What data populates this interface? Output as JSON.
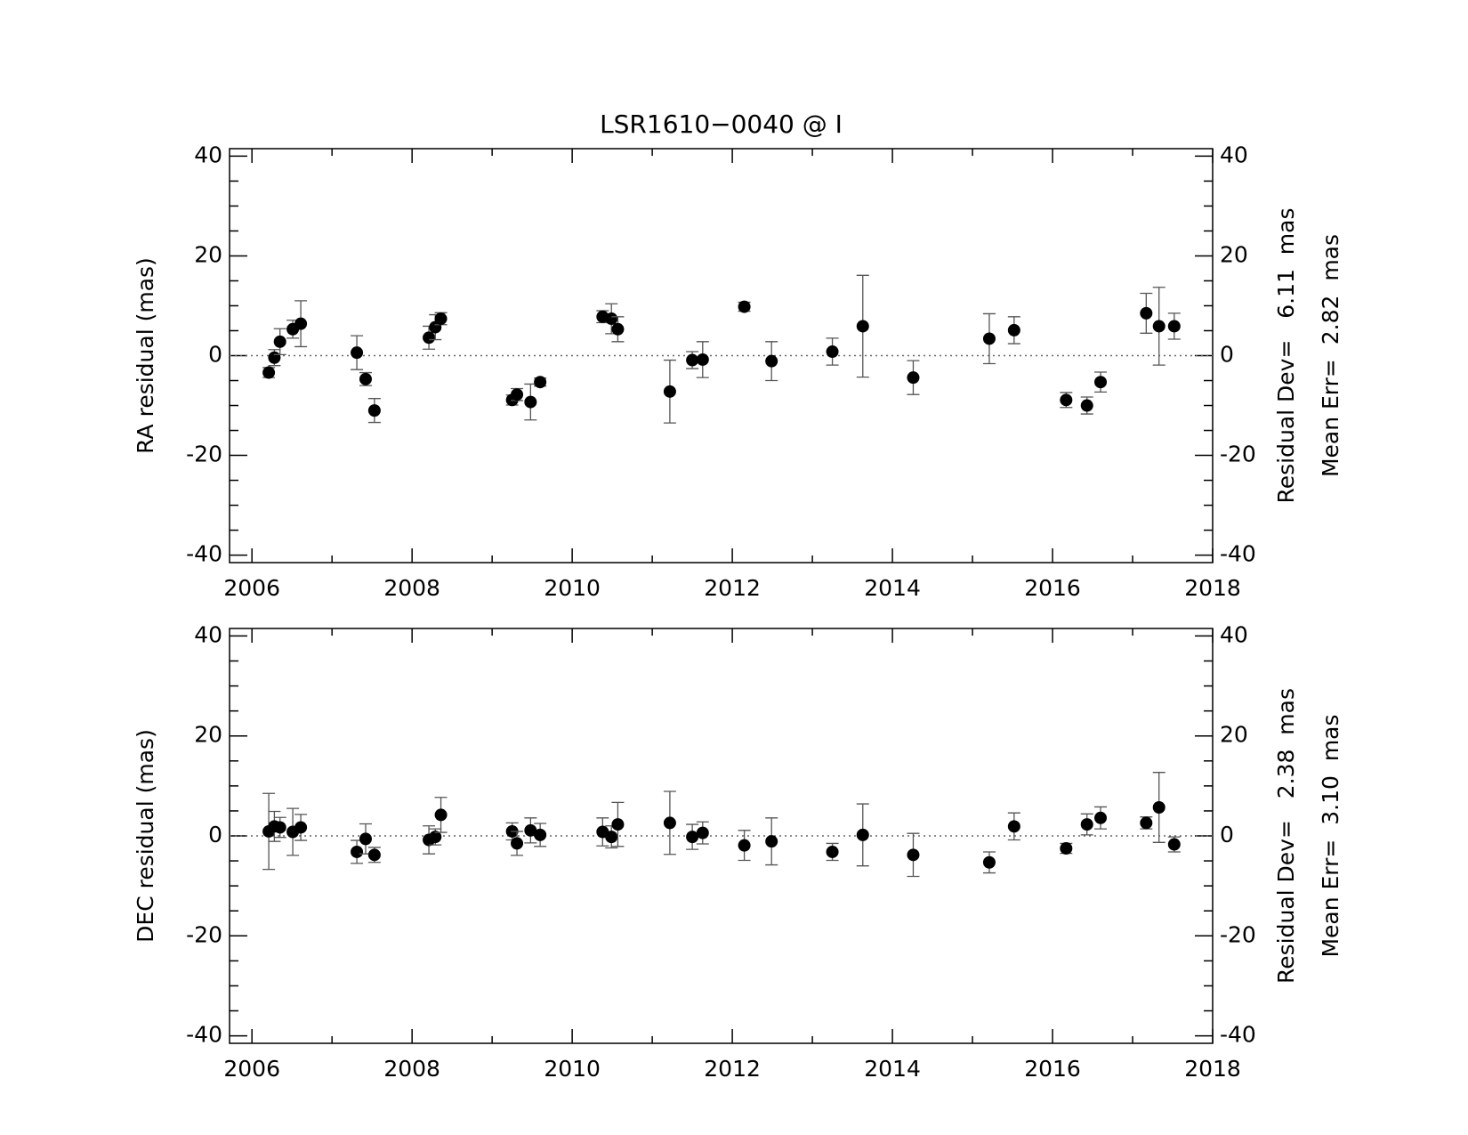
{
  "chart_data": [
    {
      "type": "scatter",
      "title": "LSR1610−0040 @ I",
      "ylabel": "RA residual (mas)",
      "annotations": [
        "Residual Dev=   6.11  mas",
        "Mean Err=  2.82  mas"
      ],
      "color": "#000000",
      "x": [
        2006.21,
        2006.28,
        2006.35,
        2006.51,
        2006.61,
        2007.31,
        2007.42,
        2007.53,
        2008.21,
        2008.29,
        2008.36,
        2009.25,
        2009.31,
        2009.48,
        2009.6,
        2010.38,
        2010.49,
        2010.57,
        2011.22,
        2011.5,
        2011.63,
        2012.15,
        2012.49,
        2013.25,
        2013.63,
        2014.26,
        2015.21,
        2015.52,
        2016.17,
        2016.43,
        2016.6,
        2017.17,
        2017.33,
        2017.52
      ],
      "values": [
        -3.4,
        -0.4,
        2.8,
        5.3,
        6.4,
        0.6,
        -4.7,
        -11,
        3.6,
        5.7,
        7.4,
        -8.9,
        -7.8,
        -9.3,
        -5.3,
        7.8,
        7.4,
        5.3,
        -7.2,
        -0.9,
        -0.8,
        9.8,
        -1.1,
        0.8,
        5.9,
        -4.4,
        3.4,
        5.1,
        -8.9,
        -10.0,
        -5.3,
        8.5,
        5.9,
        5.9
      ],
      "errors": [
        1.0,
        1.6,
        2.6,
        1.8,
        4.6,
        3.4,
        1.3,
        2.4,
        2.3,
        2.5,
        1.2,
        1.0,
        1.2,
        3.6,
        0.8,
        1.2,
        3.0,
        2.5,
        6.3,
        1.7,
        3.6,
        0.9,
        3.9,
        2.7,
        10.2,
        3.4,
        5.0,
        2.7,
        1.5,
        1.7,
        2.0,
        4.0,
        7.8,
        2.6
      ],
      "hline": 0,
      "xlim": [
        2005.72,
        2018.0
      ],
      "xticks": [
        2006,
        2008,
        2010,
        2012,
        2014,
        2016,
        2018
      ],
      "xminorticks": [
        2007,
        2009,
        2011,
        2013,
        2015,
        2017
      ],
      "ylim": [
        -41.5,
        41.5
      ],
      "yticks": [
        -40,
        -20,
        0,
        20,
        40
      ],
      "yminorticks": [
        -35,
        -30,
        -25,
        -15,
        -10,
        -5,
        5,
        10,
        15,
        25,
        30,
        35
      ]
    },
    {
      "type": "scatter",
      "ylabel": "DEC residual (mas)",
      "annotations": [
        "Residual Dev=   2.38  mas",
        "Mean Err=  3.10  mas"
      ],
      "color": "#000000",
      "x": [
        2006.21,
        2006.28,
        2006.35,
        2006.51,
        2006.61,
        2007.31,
        2007.42,
        2007.53,
        2008.21,
        2008.29,
        2008.36,
        2009.25,
        2009.31,
        2009.48,
        2009.6,
        2010.38,
        2010.49,
        2010.57,
        2011.22,
        2011.5,
        2011.63,
        2012.15,
        2012.49,
        2013.25,
        2013.63,
        2014.26,
        2015.21,
        2015.52,
        2016.17,
        2016.43,
        2016.6,
        2017.17,
        2017.33,
        2017.52
      ],
      "values": [
        0.9,
        1.9,
        1.7,
        0.8,
        1.7,
        -3.2,
        -0.6,
        -3.8,
        -0.8,
        -0.2,
        4.2,
        0.9,
        -1.5,
        1.1,
        0.2,
        0.8,
        -0.2,
        2.3,
        2.6,
        -0.2,
        0.6,
        -1.9,
        -1.1,
        -3.2,
        0.2,
        -3.8,
        -5.3,
        1.9,
        -2.5,
        2.3,
        3.6,
        2.6,
        5.7,
        -1.7
      ],
      "errors": [
        7.6,
        3.0,
        2.0,
        4.7,
        2.6,
        2.3,
        3.0,
        1.5,
        2.8,
        1.6,
        3.5,
        1.7,
        2.4,
        2.5,
        2.3,
        2.8,
        2.2,
        4.4,
        6.3,
        2.5,
        2.2,
        3.0,
        4.7,
        1.7,
        6.2,
        4.3,
        2.1,
        2.7,
        1.0,
        2.1,
        2.2,
        1.2,
        7.0,
        1.5
      ],
      "hline": 0,
      "xlim": [
        2005.72,
        2018.0
      ],
      "xticks": [
        2006,
        2008,
        2010,
        2012,
        2014,
        2016,
        2018
      ],
      "xminorticks": [
        2007,
        2009,
        2011,
        2013,
        2015,
        2017
      ],
      "ylim": [
        -41.5,
        41.5
      ],
      "yticks": [
        -40,
        -20,
        0,
        20,
        40
      ],
      "yminorticks": [
        -35,
        -30,
        -25,
        -15,
        -10,
        -5,
        5,
        10,
        15,
        25,
        30,
        35
      ]
    }
  ]
}
